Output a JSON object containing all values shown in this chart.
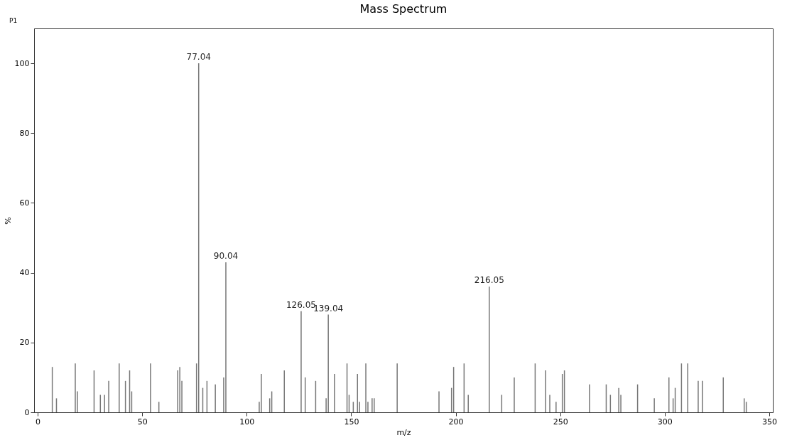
{
  "chart_data": {
    "type": "bar",
    "title": "Mass Spectrum",
    "xlabel": "m/z",
    "ylabel": "%",
    "x": [
      7,
      9,
      18,
      19,
      27,
      30,
      32,
      34,
      39,
      42,
      44,
      45,
      54,
      58,
      67,
      68,
      69,
      76,
      77.04,
      79,
      81,
      85,
      89,
      90.04,
      106,
      107,
      111,
      112,
      118,
      126.05,
      128,
      133,
      138,
      139.04,
      142,
      148,
      149,
      151,
      153,
      154,
      157,
      158,
      160,
      161,
      172,
      192,
      198,
      199,
      204,
      206,
      216.05,
      222,
      228,
      238,
      243,
      245,
      248,
      251,
      252,
      264,
      272,
      274,
      278,
      279,
      287,
      295,
      302,
      304,
      305,
      308,
      311,
      316,
      318,
      328,
      338,
      339
    ],
    "values": [
      13,
      4,
      14,
      6,
      12,
      5,
      5,
      9,
      14,
      9,
      12,
      6,
      14,
      3,
      12,
      13,
      9,
      14,
      100,
      7,
      9,
      8,
      10,
      43,
      3,
      11,
      4,
      6,
      12,
      29,
      10,
      9,
      4,
      28,
      11,
      14,
      5,
      3,
      11,
      3,
      14,
      3,
      4,
      4,
      14,
      6,
      7,
      13,
      14,
      5,
      36,
      5,
      10,
      14,
      12,
      5,
      3,
      11,
      12,
      8,
      8,
      5,
      7,
      5,
      8,
      4,
      10,
      4,
      7,
      14,
      14,
      9,
      9,
      10,
      4,
      3
    ],
    "color": "#777777",
    "xlim": [
      0,
      350
    ],
    "xticks": [
      0,
      50,
      100,
      150,
      200,
      250,
      300,
      350
    ],
    "ylim": [
      0,
      110
    ],
    "yticks": [
      0,
      20,
      40,
      60,
      80,
      100
    ],
    "annotations": [
      "P1",
      {
        "text": "77.04",
        "x": 77.04,
        "y": 100
      },
      {
        "text": "90.04",
        "x": 90.04,
        "y": 43
      },
      {
        "text": "126.05",
        "x": 126.05,
        "y": 29
      },
      {
        "text": "139.04",
        "x": 139.04,
        "y": 28
      },
      {
        "text": "216.05",
        "x": 216.05,
        "y": 36
      }
    ]
  }
}
